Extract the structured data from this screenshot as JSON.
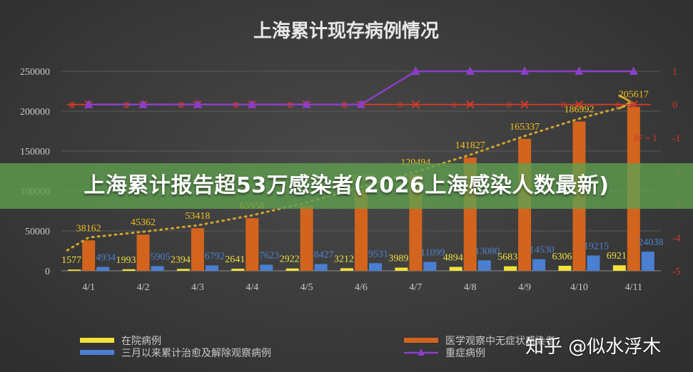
{
  "banner": {
    "headline": "上海累计报告超53万感染者(2026上海感染人数最新)"
  },
  "watermark": {
    "text": "知乎 @似水浮木"
  },
  "colors": {
    "hospitalized": "#f2e23a",
    "observation": "#d2641e",
    "released": "#4a7fd2",
    "severe": "#8a3fc8",
    "trend": "#cfa52e",
    "axis_text": "#c9c9c9",
    "right_axis_text": "#d43a2a"
  },
  "chart_data": {
    "type": "bar",
    "title": "上海累计现存病例情况",
    "categories": [
      "4/1",
      "4/2",
      "4/3",
      "4/4",
      "4/5",
      "4/6",
      "4/7",
      "4/8",
      "4/9",
      "4/10",
      "4/11"
    ],
    "ylim": [
      0,
      250000
    ],
    "yticks": [
      "0",
      "50000",
      "100000",
      "150000",
      "200000",
      "250000"
    ],
    "y2lim": [
      -5,
      1
    ],
    "y2ticks": [
      "-5",
      "-4",
      "-3",
      "-2",
      "-1",
      "0",
      "1"
    ],
    "grid": true,
    "legend_position": "bottom",
    "series": [
      {
        "name": "在院病例",
        "type": "bar",
        "axis": "left",
        "values": [
          1577,
          1993,
          2394,
          2641,
          2922,
          3212,
          3989,
          4894,
          5683,
          6306,
          6921
        ],
        "labels": [
          "1577",
          "1993",
          "2394",
          "2641",
          "2922",
          "3212",
          "3989",
          "4894",
          "5683",
          "6306",
          "6921"
        ]
      },
      {
        "name": "医学观察中无症状感染者",
        "type": "bar",
        "axis": "left",
        "values": [
          38162,
          45362,
          53418,
          65958,
          82000,
          101116,
          120494,
          141827,
          165337,
          186992,
          205617
        ],
        "labels": [
          "38162",
          "45362",
          "53418",
          "65958",
          "",
          "101116",
          "120494",
          "141827",
          "165337",
          "186992",
          "205617"
        ]
      },
      {
        "name": "三月以来累计治愈及解除观察病例",
        "type": "bar",
        "axis": "left",
        "values": [
          4934,
          5905,
          6792,
          7623,
          8427,
          9531,
          11099,
          13080,
          14530,
          19215,
          24038
        ],
        "labels": [
          "4934",
          "5905",
          "6792",
          "7623",
          "8427",
          "9531",
          "11099",
          "13080",
          "14530",
          "19215",
          "24038"
        ]
      },
      {
        "name": "重症病例",
        "type": "line",
        "axis": "right",
        "values": [
          0,
          0,
          0,
          0,
          0,
          0,
          1,
          1,
          1,
          1,
          1
        ],
        "labels": [
          "0",
          "0",
          "0",
          "0",
          "0",
          "0",
          "",
          "",
          "",
          "",
          ""
        ]
      },
      {
        "name": "",
        "type": "line",
        "axis": "right",
        "role": "reference-line",
        "values": [
          0,
          0,
          0,
          0,
          0,
          0,
          0,
          0,
          0,
          0,
          0
        ],
        "labels": [
          "0",
          "0",
          "0",
          "0",
          "0",
          "0",
          "0",
          "0",
          "0",
          "0",
          "0"
        ]
      }
    ],
    "annotation": "R² = 1"
  }
}
